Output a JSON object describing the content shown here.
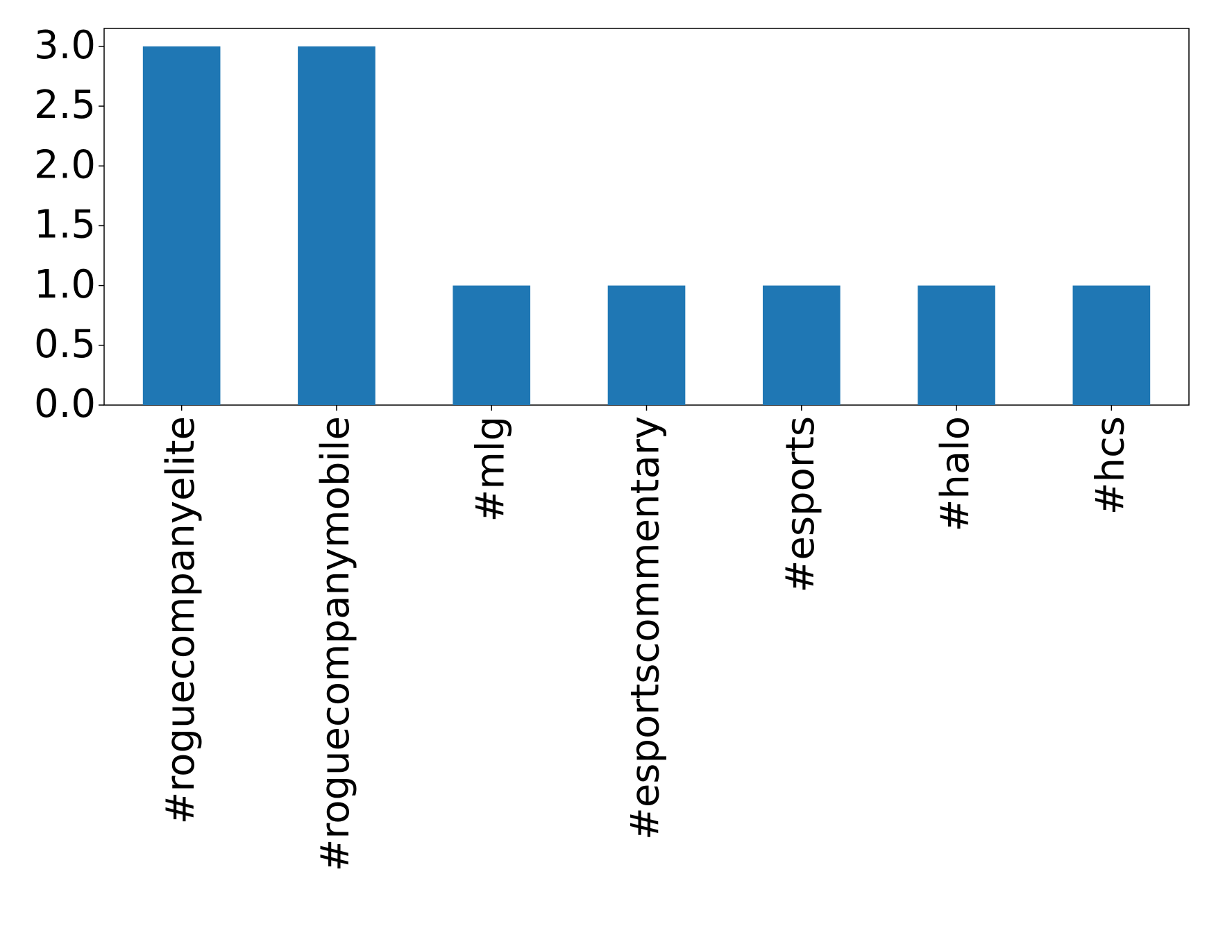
{
  "chart_data": {
    "type": "bar",
    "categories": [
      "#roguecompanyelite",
      "#roguecompanymobile",
      "#mlg",
      "#esportscommentary",
      "#esports",
      "#halo",
      "#hcs"
    ],
    "values": [
      3,
      3,
      1,
      1,
      1,
      1,
      1
    ],
    "color": "#1f77b4",
    "ylim": [
      0,
      3.15
    ],
    "yticks": [
      {
        "value": 0,
        "label": "0.0"
      },
      {
        "value": 0.5,
        "label": "0.5"
      },
      {
        "value": 1,
        "label": "1.0"
      },
      {
        "value": 1.5,
        "label": "1.5"
      },
      {
        "value": 2,
        "label": "2.0"
      },
      {
        "value": 2.5,
        "label": "2.5"
      },
      {
        "value": 3,
        "label": "3.0"
      }
    ],
    "grid": false
  }
}
